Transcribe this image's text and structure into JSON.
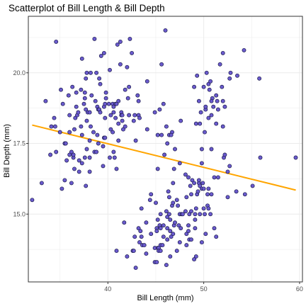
{
  "chart_data": {
    "type": "scatter",
    "title": "Scatterplot of Bill Length & Bill Depth",
    "xlabel": "Bill Length (mm)",
    "ylabel": "Bill Depth (mm)",
    "xlim": [
      31.7,
      60.3
    ],
    "ylim": [
      12.6,
      22.0
    ],
    "x_ticks": [
      40,
      50,
      60
    ],
    "y_ticks": [
      15.0,
      17.5,
      20.0
    ],
    "x_tick_labels": [
      "40",
      "50",
      "60"
    ],
    "y_tick_labels": [
      "15.0",
      "17.5",
      "20.0"
    ],
    "grid": true,
    "legend": "none",
    "colors": {
      "point_fill": "#6a5acd",
      "point_stroke": "#1a1a4a",
      "trend_line": "#ffa500",
      "grid": "#ebebeb",
      "panel_border": "#333333"
    },
    "trend_line": {
      "x": [
        32.1,
        59.6
      ],
      "y": [
        18.15,
        15.85
      ]
    },
    "points": [
      [
        32.1,
        15.5
      ],
      [
        33.1,
        16.1
      ],
      [
        33.5,
        19.0
      ],
      [
        34.0,
        17.1
      ],
      [
        34.1,
        18.1
      ],
      [
        34.4,
        18.4
      ],
      [
        34.5,
        18.1
      ],
      [
        34.6,
        21.1
      ],
      [
        34.6,
        17.2
      ],
      [
        35.0,
        17.9
      ],
      [
        35.1,
        19.4
      ],
      [
        35.2,
        15.9
      ],
      [
        35.3,
        18.9
      ],
      [
        35.5,
        16.2
      ],
      [
        35.5,
        17.5
      ],
      [
        35.6,
        17.5
      ],
      [
        35.7,
        16.9
      ],
      [
        35.9,
        19.2
      ],
      [
        36.0,
        18.5
      ],
      [
        36.0,
        17.9
      ],
      [
        36.0,
        17.1
      ],
      [
        36.2,
        16.1
      ],
      [
        36.2,
        17.2
      ],
      [
        36.3,
        19.5
      ],
      [
        36.4,
        17.0
      ],
      [
        36.4,
        17.1
      ],
      [
        36.5,
        16.6
      ],
      [
        36.5,
        18.0
      ],
      [
        36.6,
        18.4
      ],
      [
        36.7,
        19.3
      ],
      [
        36.7,
        18.8
      ],
      [
        36.8,
        18.5
      ],
      [
        36.9,
        18.6
      ],
      [
        37.0,
        16.5
      ],
      [
        37.0,
        16.9
      ],
      [
        37.2,
        18.1
      ],
      [
        37.2,
        19.4
      ],
      [
        37.3,
        17.8
      ],
      [
        37.3,
        16.8
      ],
      [
        37.3,
        20.5
      ],
      [
        37.5,
        18.9
      ],
      [
        37.6,
        19.3
      ],
      [
        37.6,
        17.0
      ],
      [
        37.6,
        19.1
      ],
      [
        37.7,
        18.7
      ],
      [
        37.7,
        16.0
      ],
      [
        37.7,
        19.8
      ],
      [
        37.8,
        18.3
      ],
      [
        37.8,
        17.3
      ],
      [
        37.8,
        20.0
      ],
      [
        37.9,
        18.6
      ],
      [
        38.1,
        18.6
      ],
      [
        38.1,
        17.0
      ],
      [
        38.1,
        16.5
      ],
      [
        38.1,
        17.6
      ],
      [
        38.2,
        18.1
      ],
      [
        38.2,
        20.0
      ],
      [
        38.3,
        19.2
      ],
      [
        38.5,
        17.9
      ],
      [
        38.6,
        21.2
      ],
      [
        38.6,
        17.2
      ],
      [
        38.7,
        19.0
      ],
      [
        38.8,
        17.2
      ],
      [
        38.8,
        20.0
      ],
      [
        38.9,
        18.8
      ],
      [
        38.9,
        17.8
      ],
      [
        39.0,
        17.5
      ],
      [
        39.0,
        18.7
      ],
      [
        39.1,
        18.7
      ],
      [
        39.1,
        19.8
      ],
      [
        39.2,
        19.6
      ],
      [
        39.2,
        18.6
      ],
      [
        39.3,
        20.6
      ],
      [
        39.5,
        16.7
      ],
      [
        39.5,
        17.4
      ],
      [
        39.6,
        17.7
      ],
      [
        39.6,
        18.8
      ],
      [
        39.6,
        20.7
      ],
      [
        39.7,
        18.4
      ],
      [
        39.7,
        17.7
      ],
      [
        39.7,
        18.9
      ],
      [
        39.8,
        19.1
      ],
      [
        39.8,
        19.3
      ],
      [
        40.1,
        18.9
      ],
      [
        40.2,
        17.0
      ],
      [
        40.2,
        20.1
      ],
      [
        40.3,
        18.0
      ],
      [
        40.3,
        18.5
      ],
      [
        40.5,
        17.9
      ],
      [
        40.5,
        18.9
      ],
      [
        40.6,
        18.6
      ],
      [
        40.6,
        18.8
      ],
      [
        40.6,
        17.2
      ],
      [
        40.7,
        17.0
      ],
      [
        40.8,
        18.4
      ],
      [
        40.8,
        18.9
      ],
      [
        40.9,
        18.9
      ],
      [
        40.9,
        16.6
      ],
      [
        41.0,
        21.0
      ],
      [
        41.1,
        17.6
      ],
      [
        41.1,
        19.0
      ],
      [
        41.1,
        18.2
      ],
      [
        41.3,
        20.3
      ],
      [
        41.3,
        21.1
      ],
      [
        41.4,
        18.6
      ],
      [
        41.4,
        18.5
      ],
      [
        41.5,
        18.3
      ],
      [
        41.5,
        18.5
      ],
      [
        41.6,
        18.0
      ],
      [
        41.8,
        19.4
      ],
      [
        41.8,
        18.1
      ],
      [
        42.0,
        20.2
      ],
      [
        42.1,
        19.1
      ],
      [
        42.2,
        18.5
      ],
      [
        42.2,
        19.5
      ],
      [
        42.3,
        21.2
      ],
      [
        42.5,
        20.7
      ],
      [
        42.7,
        18.3
      ],
      [
        42.8,
        18.5
      ],
      [
        42.9,
        17.6
      ],
      [
        43.1,
        19.2
      ],
      [
        43.2,
        18.5
      ],
      [
        43.2,
        19.0
      ],
      [
        43.3,
        18.4
      ],
      [
        44.1,
        19.7
      ],
      [
        44.1,
        18.0
      ],
      [
        44.9,
        18.6
      ],
      [
        45.2,
        17.8
      ],
      [
        45.6,
        20.3
      ],
      [
        46.0,
        21.5
      ],
      [
        45.8,
        18.9
      ],
      [
        46.1,
        18.1
      ],
      [
        45.6,
        17.8
      ],
      [
        46.4,
        17.8
      ],
      [
        46.7,
        17.9
      ],
      [
        46.9,
        16.6
      ],
      [
        47.0,
        17.3
      ],
      [
        45.2,
        16.6
      ],
      [
        45.4,
        18.7
      ],
      [
        45.9,
        17.1
      ],
      [
        46.2,
        17.5
      ],
      [
        46.6,
        17.8
      ],
      [
        47.5,
        16.8
      ],
      [
        47.6,
        18.3
      ],
      [
        48.1,
        16.4
      ],
      [
        49.0,
        19.5
      ],
      [
        49.2,
        18.2
      ],
      [
        49.3,
        19.9
      ],
      [
        49.5,
        19.0
      ],
      [
        49.6,
        18.2
      ],
      [
        49.7,
        18.6
      ],
      [
        49.8,
        17.3
      ],
      [
        50.0,
        19.5
      ],
      [
        50.1,
        17.9
      ],
      [
        50.2,
        18.7
      ],
      [
        50.3,
        20.0
      ],
      [
        50.5,
        19.6
      ],
      [
        50.6,
        19.4
      ],
      [
        50.7,
        19.7
      ],
      [
        50.8,
        18.5
      ],
      [
        50.9,
        19.1
      ],
      [
        51.0,
        18.8
      ],
      [
        51.3,
        19.2
      ],
      [
        51.4,
        19.0
      ],
      [
        51.5,
        18.7
      ],
      [
        51.7,
        20.3
      ],
      [
        51.9,
        19.5
      ],
      [
        52.0,
        20.7
      ],
      [
        52.0,
        18.1
      ],
      [
        52.2,
        18.8
      ],
      [
        52.7,
        19.8
      ],
      [
        52.8,
        20.0
      ],
      [
        53.5,
        19.9
      ],
      [
        54.2,
        20.8
      ],
      [
        55.8,
        19.8
      ],
      [
        50.2,
        18.8
      ],
      [
        50.5,
        18.4
      ],
      [
        51.3,
        18.2
      ],
      [
        52.0,
        19.0
      ],
      [
        50.8,
        19.0
      ],
      [
        40.9,
        13.7
      ],
      [
        41.7,
        14.7
      ],
      [
        42.0,
        13.5
      ],
      [
        42.6,
        13.7
      ],
      [
        42.7,
        13.7
      ],
      [
        42.8,
        14.2
      ],
      [
        42.9,
        13.1
      ],
      [
        43.2,
        14.5
      ],
      [
        43.3,
        14.0
      ],
      [
        43.4,
        14.4
      ],
      [
        43.5,
        14.2
      ],
      [
        43.5,
        15.2
      ],
      [
        43.6,
        13.9
      ],
      [
        43.8,
        13.9
      ],
      [
        44.0,
        13.6
      ],
      [
        44.4,
        15.5
      ],
      [
        44.5,
        14.3
      ],
      [
        44.5,
        15.7
      ],
      [
        44.9,
        13.3
      ],
      [
        44.9,
        13.8
      ],
      [
        45.0,
        15.4
      ],
      [
        45.1,
        14.5
      ],
      [
        45.1,
        14.4
      ],
      [
        45.2,
        14.8
      ],
      [
        45.2,
        13.8
      ],
      [
        45.3,
        13.8
      ],
      [
        45.3,
        13.7
      ],
      [
        45.4,
        14.6
      ],
      [
        45.5,
        13.7
      ],
      [
        45.5,
        13.9
      ],
      [
        45.5,
        14.5
      ],
      [
        45.5,
        15.0
      ],
      [
        45.7,
        13.9
      ],
      [
        45.8,
        14.6
      ],
      [
        45.8,
        14.2
      ],
      [
        46.1,
        13.2
      ],
      [
        46.1,
        15.1
      ],
      [
        46.2,
        14.5
      ],
      [
        46.2,
        14.1
      ],
      [
        46.2,
        14.9
      ],
      [
        46.3,
        15.8
      ],
      [
        46.4,
        15.0
      ],
      [
        46.4,
        15.6
      ],
      [
        46.5,
        13.5
      ],
      [
        46.5,
        14.4
      ],
      [
        46.5,
        14.8
      ],
      [
        46.6,
        14.2
      ],
      [
        46.7,
        15.3
      ],
      [
        46.8,
        14.3
      ],
      [
        46.8,
        15.4
      ],
      [
        46.8,
        16.1
      ],
      [
        46.9,
        14.6
      ],
      [
        47.0,
        14.7
      ],
      [
        47.2,
        13.7
      ],
      [
        47.2,
        15.5
      ],
      [
        47.3,
        15.3
      ],
      [
        47.4,
        14.6
      ],
      [
        47.5,
        14.0
      ],
      [
        47.5,
        15.0
      ],
      [
        47.6,
        14.5
      ],
      [
        47.7,
        15.0
      ],
      [
        47.8,
        15.0
      ],
      [
        48.1,
        15.1
      ],
      [
        48.2,
        14.3
      ],
      [
        48.2,
        15.6
      ],
      [
        48.4,
        14.4
      ],
      [
        48.4,
        14.6
      ],
      [
        48.4,
        16.3
      ],
      [
        48.5,
        14.1
      ],
      [
        48.5,
        15.0
      ],
      [
        48.6,
        16.0
      ],
      [
        48.7,
        14.1
      ],
      [
        48.7,
        15.1
      ],
      [
        48.7,
        15.7
      ],
      [
        48.8,
        16.2
      ],
      [
        49.0,
        16.1
      ],
      [
        49.1,
        14.5
      ],
      [
        49.1,
        14.8
      ],
      [
        49.1,
        15.0
      ],
      [
        49.2,
        15.2
      ],
      [
        49.3,
        15.7
      ],
      [
        49.4,
        15.8
      ],
      [
        49.5,
        16.1
      ],
      [
        49.5,
        16.2
      ],
      [
        49.6,
        15.0
      ],
      [
        49.6,
        16.0
      ],
      [
        49.8,
        15.9
      ],
      [
        49.8,
        16.8
      ],
      [
        49.9,
        16.1
      ],
      [
        50.0,
        15.2
      ],
      [
        50.0,
        15.9
      ],
      [
        50.1,
        15.0
      ],
      [
        50.2,
        14.3
      ],
      [
        50.4,
        15.3
      ],
      [
        50.4,
        15.7
      ],
      [
        50.5,
        15.2
      ],
      [
        50.5,
        15.9
      ],
      [
        50.7,
        15.0
      ],
      [
        50.8,
        15.7
      ],
      [
        50.8,
        17.3
      ],
      [
        51.1,
        14.5
      ],
      [
        51.1,
        16.3
      ],
      [
        51.3,
        14.2
      ],
      [
        51.5,
        16.3
      ],
      [
        52.1,
        17.0
      ],
      [
        52.2,
        17.1
      ],
      [
        52.5,
        15.6
      ],
      [
        52.5,
        16.5
      ],
      [
        52.7,
        16.7
      ],
      [
        53.4,
        15.8
      ],
      [
        54.3,
        15.7
      ],
      [
        55.1,
        16.0
      ],
      [
        55.9,
        17.0
      ],
      [
        59.6,
        17.0
      ],
      [
        49.2,
        13.5
      ],
      [
        49.8,
        14.0
      ],
      [
        48.2,
        13.9
      ],
      [
        49.0,
        13.4
      ],
      [
        44.0,
        14.7
      ],
      [
        45.1,
        13.3
      ]
    ]
  }
}
